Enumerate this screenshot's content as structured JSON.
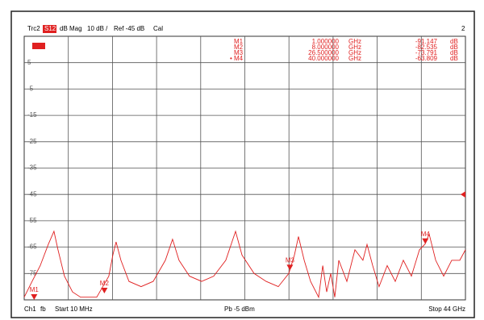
{
  "header": {
    "trace": "Trc2",
    "parameter": "S12",
    "format": "dB Mag",
    "scale": "10 dB /",
    "ref": "Ref -45 dB",
    "cal": "Cal",
    "window": "2"
  },
  "footer": {
    "channel": "Ch1",
    "fb": "fb",
    "start": "Start 10 MHz",
    "power": "Pb -5 dBm",
    "stop": "Stop 44 GHz"
  },
  "chart_data": {
    "type": "line",
    "xlim": [
      0.01,
      44
    ],
    "ylim": [
      -85,
      15
    ],
    "yticks": [
      5,
      -5,
      -15,
      -25,
      -35,
      -45,
      -55,
      -65,
      -75
    ],
    "ref_level": -45,
    "grid": true,
    "series": [
      {
        "name": "Trc2",
        "color": "#e02020",
        "x": [
          0.01,
          0.8,
          1.61,
          2.41,
          2.98,
          3.38,
          4.02,
          4.83,
          5.63,
          7.24,
          8.45,
          8.85,
          9.17,
          9.65,
          10.46,
          11.66,
          12.87,
          14.08,
          14.8,
          15.44,
          16.49,
          17.7,
          18.9,
          20.11,
          21.08,
          21.72,
          22.93,
          24.13,
          25.34,
          26.39,
          26.95,
          27.35,
          27.92,
          28.56,
          29.36,
          29.77,
          30.17,
          30.57,
          30.97,
          31.37,
          32.18,
          32.98,
          33.78,
          34.19,
          34.75,
          35.39,
          36.2,
          37,
          37.81,
          38.61,
          39.42,
          39.98,
          40.38,
          41.03,
          41.83,
          42.63,
          43.44,
          44
        ],
        "values": [
          -84,
          -78,
          -72,
          -64,
          -59,
          -66,
          -76,
          -82,
          -84,
          -84,
          -76,
          -68,
          -63,
          -70,
          -78,
          -80,
          -78,
          -70,
          -62,
          -70,
          -76,
          -78,
          -76,
          -70,
          -59,
          -68,
          -75,
          -78,
          -80,
          -75,
          -68,
          -61,
          -70,
          -78,
          -84,
          -72,
          -82,
          -75,
          -84,
          -70,
          -78,
          -66,
          -70,
          -64,
          -72,
          -80,
          -72,
          -78,
          -70,
          -76,
          -66,
          -63.8,
          -60,
          -70,
          -76,
          -70,
          -70,
          -66
        ]
      }
    ],
    "markers": [
      {
        "name": "M1",
        "freq": "1.000000",
        "unit": "GHz",
        "value": "-91.147",
        "vunit": "dB"
      },
      {
        "name": "M2",
        "freq": "8.000000",
        "unit": "GHz",
        "value": "-82.535",
        "vunit": "dB"
      },
      {
        "name": "M3",
        "freq": "26.500000",
        "unit": "GHz",
        "value": "-73.791",
        "vunit": "dB"
      },
      {
        "name": "M4",
        "freq": "40.000000",
        "unit": "GHz",
        "value": "-63.809",
        "vunit": "dB"
      }
    ]
  }
}
